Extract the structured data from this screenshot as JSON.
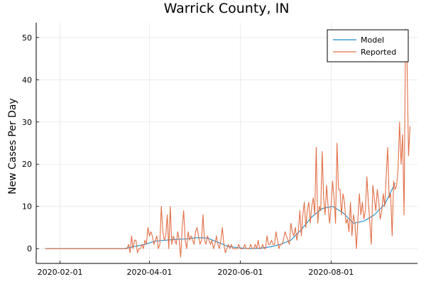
{
  "chart_data": {
    "type": "line",
    "title": "Warrick County, IN",
    "xlabel": "",
    "ylabel": "New Cases Per Day",
    "x_tick_labels": [
      "2020-02-01",
      "2020-04-01",
      "2020-06-01",
      "2020-08-01"
    ],
    "x_tick_dates": [
      "2020-02-01",
      "2020-04-01",
      "2020-06-01",
      "2020-08-01"
    ],
    "y_ticks": [
      0,
      10,
      20,
      30,
      40,
      50
    ],
    "xlim": [
      "2020-01-16",
      "2020-09-28"
    ],
    "ylim": [
      -3.5,
      53.5
    ],
    "grid": true,
    "legend_position": "top-right",
    "series": [
      {
        "name": "Model",
        "color": "#1e8bc9",
        "points": [
          [
            "2020-01-22",
            0
          ],
          [
            "2020-03-15",
            0
          ],
          [
            "2020-03-22",
            0.5
          ],
          [
            "2020-03-29",
            1.0
          ],
          [
            "2020-04-05",
            1.8
          ],
          [
            "2020-04-12",
            2.0
          ],
          [
            "2020-04-19",
            2.2
          ],
          [
            "2020-04-26",
            2.3
          ],
          [
            "2020-05-03",
            2.6
          ],
          [
            "2020-05-10",
            2.5
          ],
          [
            "2020-05-17",
            1.5
          ],
          [
            "2020-05-24",
            0.5
          ],
          [
            "2020-05-31",
            0.2
          ],
          [
            "2020-06-07",
            0.0
          ],
          [
            "2020-06-14",
            0.1
          ],
          [
            "2020-06-21",
            0.4
          ],
          [
            "2020-06-28",
            1.0
          ],
          [
            "2020-07-05",
            2.0
          ],
          [
            "2020-07-12",
            4.5
          ],
          [
            "2020-07-19",
            7.5
          ],
          [
            "2020-07-26",
            9.5
          ],
          [
            "2020-08-02",
            10.0
          ],
          [
            "2020-08-09",
            8.5
          ],
          [
            "2020-08-16",
            6.0
          ],
          [
            "2020-08-23",
            6.5
          ],
          [
            "2020-08-30",
            8.0
          ],
          [
            "2020-09-06",
            10.5
          ],
          [
            "2020-09-13",
            15.5
          ]
        ]
      },
      {
        "name": "Reported",
        "color": "#e26f46",
        "points": [
          [
            "2020-01-22",
            0
          ],
          [
            "2020-03-01",
            0
          ],
          [
            "2020-03-17",
            0
          ],
          [
            "2020-03-18",
            1
          ],
          [
            "2020-03-19",
            -1
          ],
          [
            "2020-03-20",
            3
          ],
          [
            "2020-03-21",
            0
          ],
          [
            "2020-03-22",
            2
          ],
          [
            "2020-03-23",
            2
          ],
          [
            "2020-03-24",
            -1
          ],
          [
            "2020-03-25",
            0
          ],
          [
            "2020-03-26",
            0
          ],
          [
            "2020-03-27",
            1
          ],
          [
            "2020-03-28",
            0
          ],
          [
            "2020-03-29",
            2
          ],
          [
            "2020-03-30",
            1
          ],
          [
            "2020-03-31",
            5
          ],
          [
            "2020-04-01",
            3
          ],
          [
            "2020-04-02",
            4
          ],
          [
            "2020-04-03",
            3
          ],
          [
            "2020-04-04",
            1
          ],
          [
            "2020-04-05",
            2
          ],
          [
            "2020-04-06",
            3
          ],
          [
            "2020-04-07",
            0
          ],
          [
            "2020-04-08",
            1
          ],
          [
            "2020-04-09",
            10
          ],
          [
            "2020-04-10",
            4
          ],
          [
            "2020-04-11",
            2
          ],
          [
            "2020-04-12",
            3
          ],
          [
            "2020-04-13",
            8
          ],
          [
            "2020-04-14",
            0
          ],
          [
            "2020-04-15",
            10
          ],
          [
            "2020-04-16",
            1
          ],
          [
            "2020-04-17",
            3
          ],
          [
            "2020-04-18",
            2
          ],
          [
            "2020-04-19",
            1
          ],
          [
            "2020-04-20",
            4
          ],
          [
            "2020-04-21",
            2
          ],
          [
            "2020-04-22",
            -2
          ],
          [
            "2020-04-23",
            5
          ],
          [
            "2020-04-24",
            9
          ],
          [
            "2020-04-25",
            2
          ],
          [
            "2020-04-26",
            0
          ],
          [
            "2020-04-27",
            4
          ],
          [
            "2020-04-28",
            2
          ],
          [
            "2020-04-29",
            3
          ],
          [
            "2020-04-30",
            2
          ],
          [
            "2020-05-01",
            1
          ],
          [
            "2020-05-02",
            4
          ],
          [
            "2020-05-03",
            5
          ],
          [
            "2020-05-04",
            3
          ],
          [
            "2020-05-05",
            1
          ],
          [
            "2020-05-06",
            2
          ],
          [
            "2020-05-07",
            8
          ],
          [
            "2020-05-08",
            2
          ],
          [
            "2020-05-09",
            1
          ],
          [
            "2020-05-10",
            3
          ],
          [
            "2020-05-11",
            2
          ],
          [
            "2020-05-12",
            1
          ],
          [
            "2020-05-13",
            2
          ],
          [
            "2020-05-14",
            0
          ],
          [
            "2020-05-15",
            1
          ],
          [
            "2020-05-16",
            3
          ],
          [
            "2020-05-17",
            1
          ],
          [
            "2020-05-18",
            0
          ],
          [
            "2020-05-19",
            2
          ],
          [
            "2020-05-20",
            5
          ],
          [
            "2020-05-21",
            1
          ],
          [
            "2020-05-22",
            -1
          ],
          [
            "2020-05-23",
            0
          ],
          [
            "2020-05-24",
            1
          ],
          [
            "2020-05-25",
            0
          ],
          [
            "2020-05-26",
            1
          ],
          [
            "2020-05-27",
            0
          ],
          [
            "2020-05-28",
            0
          ],
          [
            "2020-05-29",
            0
          ],
          [
            "2020-05-30",
            0
          ],
          [
            "2020-05-31",
            1
          ],
          [
            "2020-06-01",
            0
          ],
          [
            "2020-06-02",
            0
          ],
          [
            "2020-06-03",
            0
          ],
          [
            "2020-06-04",
            1
          ],
          [
            "2020-06-05",
            0
          ],
          [
            "2020-06-06",
            0
          ],
          [
            "2020-06-07",
            0
          ],
          [
            "2020-06-08",
            1
          ],
          [
            "2020-06-09",
            0
          ],
          [
            "2020-06-10",
            0
          ],
          [
            "2020-06-11",
            1
          ],
          [
            "2020-06-12",
            0
          ],
          [
            "2020-06-13",
            2
          ],
          [
            "2020-06-14",
            0
          ],
          [
            "2020-06-15",
            0
          ],
          [
            "2020-06-16",
            1
          ],
          [
            "2020-06-17",
            0
          ],
          [
            "2020-06-18",
            0
          ],
          [
            "2020-06-19",
            3
          ],
          [
            "2020-06-20",
            1
          ],
          [
            "2020-06-21",
            1
          ],
          [
            "2020-06-22",
            2
          ],
          [
            "2020-06-23",
            1
          ],
          [
            "2020-06-24",
            1
          ],
          [
            "2020-06-25",
            4
          ],
          [
            "2020-06-26",
            2
          ],
          [
            "2020-06-27",
            0
          ],
          [
            "2020-06-28",
            1
          ],
          [
            "2020-06-29",
            1
          ],
          [
            "2020-06-30",
            2
          ],
          [
            "2020-07-01",
            4
          ],
          [
            "2020-07-02",
            3
          ],
          [
            "2020-07-03",
            2
          ],
          [
            "2020-07-04",
            1
          ],
          [
            "2020-07-05",
            6
          ],
          [
            "2020-07-06",
            4
          ],
          [
            "2020-07-07",
            3
          ],
          [
            "2020-07-08",
            5
          ],
          [
            "2020-07-09",
            2
          ],
          [
            "2020-07-10",
            4
          ],
          [
            "2020-07-11",
            9
          ],
          [
            "2020-07-12",
            3
          ],
          [
            "2020-07-13",
            8
          ],
          [
            "2020-07-14",
            11
          ],
          [
            "2020-07-15",
            5
          ],
          [
            "2020-07-16",
            9
          ],
          [
            "2020-07-17",
            11
          ],
          [
            "2020-07-18",
            6
          ],
          [
            "2020-07-19",
            10
          ],
          [
            "2020-07-20",
            12
          ],
          [
            "2020-07-21",
            8
          ],
          [
            "2020-07-22",
            24
          ],
          [
            "2020-07-23",
            6
          ],
          [
            "2020-07-24",
            10
          ],
          [
            "2020-07-25",
            9
          ],
          [
            "2020-07-26",
            23
          ],
          [
            "2020-07-27",
            12
          ],
          [
            "2020-07-28",
            8
          ],
          [
            "2020-07-29",
            15
          ],
          [
            "2020-07-30",
            10
          ],
          [
            "2020-07-31",
            6
          ],
          [
            "2020-08-01",
            10
          ],
          [
            "2020-08-02",
            16
          ],
          [
            "2020-08-03",
            12
          ],
          [
            "2020-08-04",
            6
          ],
          [
            "2020-08-05",
            25
          ],
          [
            "2020-08-06",
            14
          ],
          [
            "2020-08-07",
            14
          ],
          [
            "2020-08-08",
            8
          ],
          [
            "2020-08-09",
            13
          ],
          [
            "2020-08-10",
            11
          ],
          [
            "2020-08-11",
            6
          ],
          [
            "2020-08-12",
            7
          ],
          [
            "2020-08-13",
            4
          ],
          [
            "2020-08-14",
            11
          ],
          [
            "2020-08-15",
            3
          ],
          [
            "2020-08-16",
            8
          ],
          [
            "2020-08-17",
            6
          ],
          [
            "2020-08-18",
            0
          ],
          [
            "2020-08-19",
            7
          ],
          [
            "2020-08-20",
            13
          ],
          [
            "2020-08-21",
            8
          ],
          [
            "2020-08-22",
            11
          ],
          [
            "2020-08-23",
            7
          ],
          [
            "2020-08-24",
            9
          ],
          [
            "2020-08-25",
            17
          ],
          [
            "2020-08-26",
            11
          ],
          [
            "2020-08-27",
            6
          ],
          [
            "2020-08-28",
            1
          ],
          [
            "2020-08-29",
            15
          ],
          [
            "2020-08-30",
            12
          ],
          [
            "2020-08-31",
            9
          ],
          [
            "2020-09-01",
            14
          ],
          [
            "2020-09-02",
            11
          ],
          [
            "2020-09-03",
            7
          ],
          [
            "2020-09-04",
            9
          ],
          [
            "2020-09-05",
            13
          ],
          [
            "2020-09-06",
            10
          ],
          [
            "2020-09-07",
            17
          ],
          [
            "2020-09-08",
            24
          ],
          [
            "2020-09-09",
            12
          ],
          [
            "2020-09-10",
            13
          ],
          [
            "2020-09-11",
            3
          ],
          [
            "2020-09-12",
            16
          ],
          [
            "2020-09-13",
            14
          ],
          [
            "2020-09-14",
            15
          ],
          [
            "2020-09-15",
            19
          ],
          [
            "2020-09-16",
            30
          ],
          [
            "2020-09-17",
            20
          ],
          [
            "2020-09-18",
            27
          ],
          [
            "2020-09-19",
            8
          ],
          [
            "2020-09-20",
            52
          ],
          [
            "2020-09-21",
            44
          ],
          [
            "2020-09-22",
            22
          ],
          [
            "2020-09-23",
            29
          ]
        ]
      }
    ]
  }
}
